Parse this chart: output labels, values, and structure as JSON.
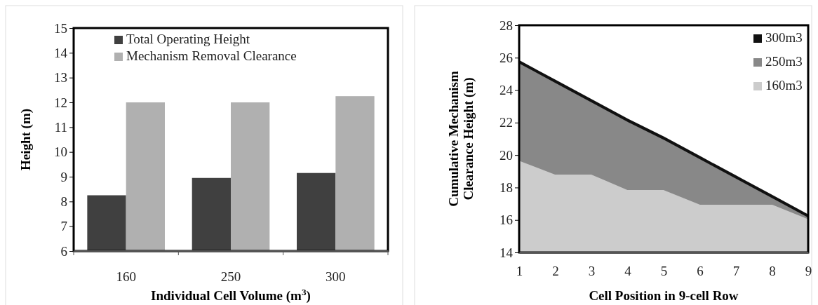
{
  "chart_data": [
    {
      "type": "bar",
      "xlabel": "Individual Cell Volume (m$^{3}$)",
      "ylabel": "Height (m)",
      "categories": [
        "160",
        "250",
        "300"
      ],
      "series": [
        {
          "name": "Total Operating Height",
          "color": "#404040",
          "values": [
            8.25,
            8.95,
            9.15
          ]
        },
        {
          "name": "Mechanism Removal Clearance",
          "color": "#b0b0b0",
          "values": [
            12,
            12,
            12.25
          ]
        }
      ],
      "ylim": [
        6,
        15
      ],
      "yticks": [
        6,
        7,
        8,
        9,
        10,
        11,
        12,
        13,
        14,
        15
      ],
      "legend": "top"
    },
    {
      "type": "area",
      "xlabel": "Cell Position in 9-cell Row",
      "ylabel": "Cumulative Mechanism Clearance Height (m)",
      "x": [
        1,
        2,
        3,
        4,
        5,
        6,
        7,
        8,
        9
      ],
      "series": [
        {
          "name": "300m3",
          "color": "#111111",
          "values": [
            25.8,
            24.6,
            23.4,
            22.2,
            21.1,
            19.9,
            18.7,
            17.5,
            16.3
          ]
        },
        {
          "name": "250m3",
          "color": "#888888",
          "values": [
            25.6,
            24.4,
            23.2,
            22.0,
            20.9,
            19.7,
            18.5,
            17.3,
            16.1
          ]
        },
        {
          "name": "160m3",
          "color": "#cccccc",
          "values": [
            19.6,
            18.75,
            18.75,
            17.8,
            17.8,
            16.9,
            16.9,
            16.9,
            16.0
          ]
        }
      ],
      "xlim": [
        1,
        9
      ],
      "xticks": [
        1,
        2,
        3,
        4,
        5,
        6,
        7,
        8,
        9
      ],
      "ylim": [
        14,
        28
      ],
      "yticks": [
        14,
        16,
        18,
        20,
        22,
        24,
        26,
        28
      ],
      "legend": "top right"
    }
  ]
}
